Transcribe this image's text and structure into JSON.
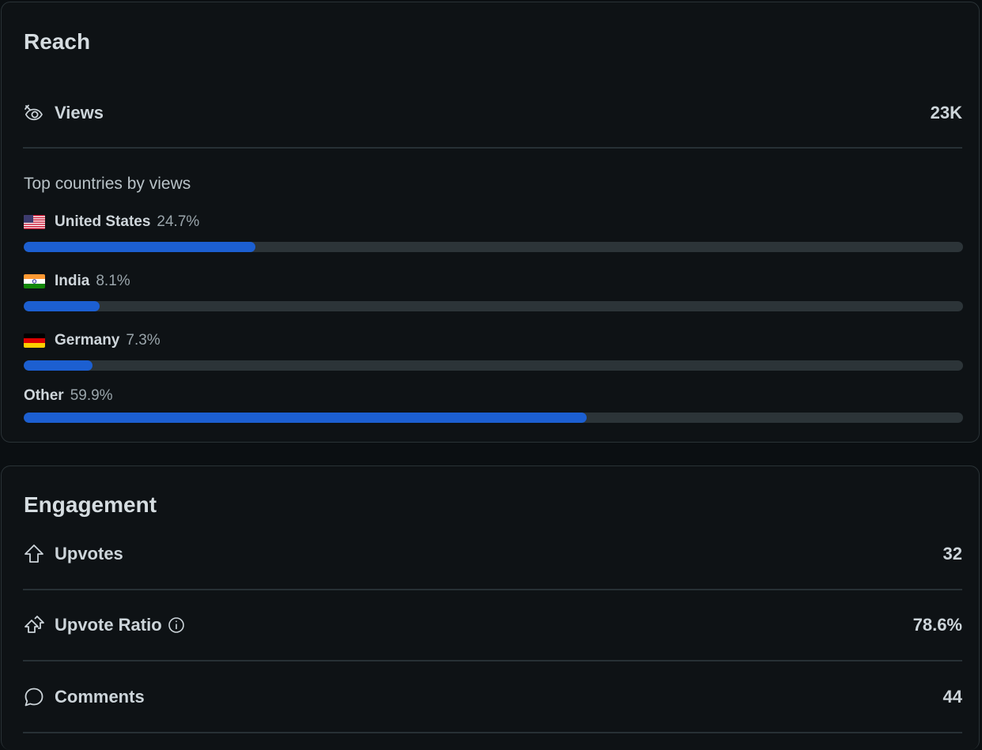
{
  "reach": {
    "title": "Reach",
    "views_label": "Views",
    "views_value": "23K",
    "countries_heading": "Top countries by views",
    "countries": [
      {
        "name": "United States",
        "pct_label": "24.7%",
        "pct": 24.7,
        "flag": "us"
      },
      {
        "name": "India",
        "pct_label": "8.1%",
        "pct": 8.1,
        "flag": "in"
      },
      {
        "name": "Germany",
        "pct_label": "7.3%",
        "pct": 7.3,
        "flag": "de"
      },
      {
        "name": "Other",
        "pct_label": "59.9%",
        "pct": 59.9,
        "flag": ""
      }
    ]
  },
  "engagement": {
    "title": "Engagement",
    "upvotes_label": "Upvotes",
    "upvotes_value": "32",
    "ratio_label": "Upvote Ratio",
    "ratio_value": "78.6%",
    "comments_label": "Comments",
    "comments_value": "44"
  },
  "colors": {
    "bar_fill": "#1c5fd1",
    "bar_track": "#2c3438",
    "card_bg": "#0e1215"
  },
  "icons": {
    "views": "eye-icon",
    "upvotes": "upvote-arrow-icon",
    "ratio": "double-upvote-arrow-icon",
    "info": "info-icon",
    "comments": "comment-bubble-icon"
  }
}
